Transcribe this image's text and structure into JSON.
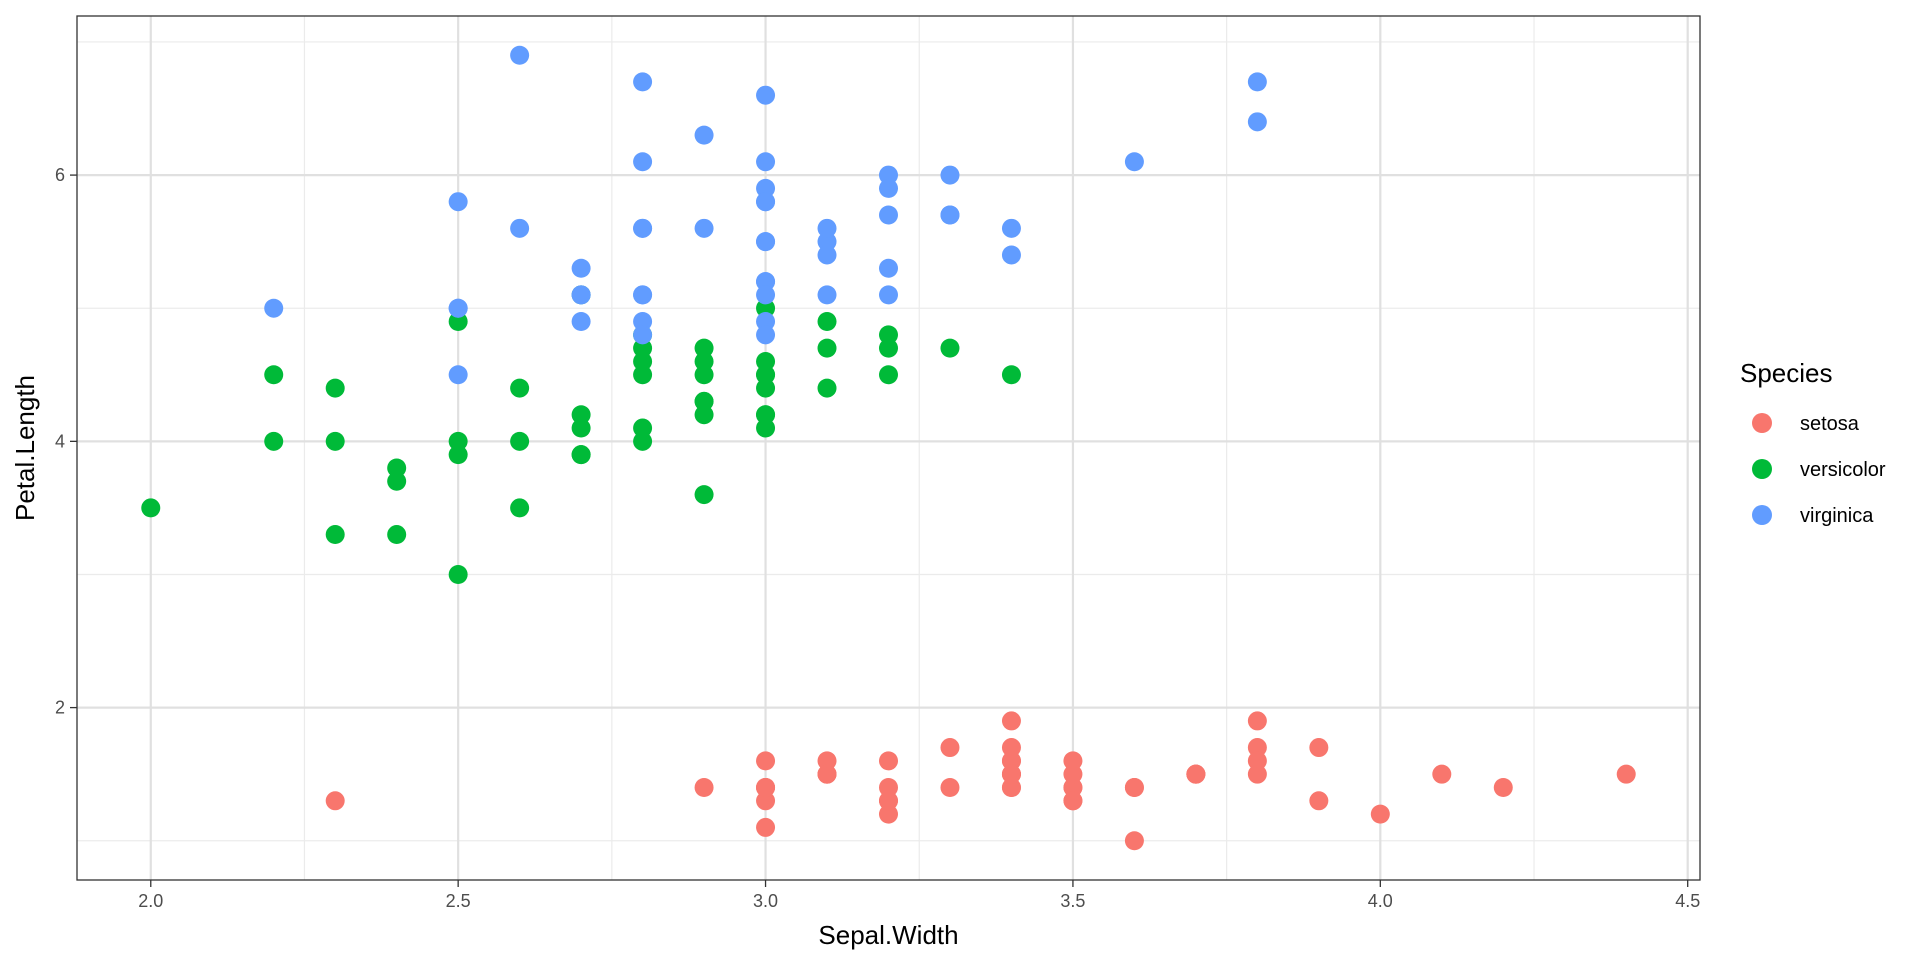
{
  "chart_data": {
    "type": "scatter",
    "xlabel": "Sepal.Width",
    "ylabel": "Petal.Length",
    "xlim": [
      1.88,
      4.52
    ],
    "ylim": [
      0.705,
      7.195
    ],
    "x_ticks": [
      2.0,
      2.5,
      3.0,
      3.5,
      4.0,
      4.5
    ],
    "x_tick_labels": [
      "2.0",
      "2.5",
      "3.0",
      "3.5",
      "4.0",
      "4.5"
    ],
    "x_minor_ticks": [
      2.25,
      2.75,
      3.25,
      3.75,
      4.25
    ],
    "y_ticks": [
      2,
      4,
      6
    ],
    "y_tick_labels": [
      "2",
      "4",
      "6"
    ],
    "y_minor_ticks": [
      1,
      3,
      5,
      7
    ],
    "grid": true,
    "legend": {
      "title": "Species",
      "position": "right"
    },
    "series": [
      {
        "name": "setosa",
        "color": "#F8766D",
        "points": [
          [
            3.5,
            1.4
          ],
          [
            3.0,
            1.4
          ],
          [
            3.2,
            1.3
          ],
          [
            3.1,
            1.5
          ],
          [
            3.6,
            1.4
          ],
          [
            3.9,
            1.7
          ],
          [
            3.4,
            1.4
          ],
          [
            3.4,
            1.5
          ],
          [
            2.9,
            1.4
          ],
          [
            3.1,
            1.5
          ],
          [
            3.7,
            1.5
          ],
          [
            3.4,
            1.6
          ],
          [
            3.0,
            1.4
          ],
          [
            3.0,
            1.1
          ],
          [
            4.0,
            1.2
          ],
          [
            4.4,
            1.5
          ],
          [
            3.9,
            1.3
          ],
          [
            3.5,
            1.4
          ],
          [
            3.8,
            1.7
          ],
          [
            3.8,
            1.5
          ],
          [
            3.4,
            1.7
          ],
          [
            3.7,
            1.5
          ],
          [
            3.6,
            1.0
          ],
          [
            3.3,
            1.7
          ],
          [
            3.4,
            1.9
          ],
          [
            3.0,
            1.6
          ],
          [
            3.4,
            1.6
          ],
          [
            3.5,
            1.5
          ],
          [
            3.4,
            1.4
          ],
          [
            3.2,
            1.6
          ],
          [
            3.1,
            1.6
          ],
          [
            3.4,
            1.5
          ],
          [
            4.1,
            1.5
          ],
          [
            4.2,
            1.4
          ],
          [
            3.1,
            1.5
          ],
          [
            3.2,
            1.2
          ],
          [
            3.5,
            1.3
          ],
          [
            3.6,
            1.4
          ],
          [
            3.0,
            1.3
          ],
          [
            3.4,
            1.5
          ],
          [
            3.5,
            1.3
          ],
          [
            2.3,
            1.3
          ],
          [
            3.2,
            1.3
          ],
          [
            3.5,
            1.6
          ],
          [
            3.8,
            1.9
          ],
          [
            3.0,
            1.4
          ],
          [
            3.8,
            1.6
          ],
          [
            3.2,
            1.4
          ],
          [
            3.7,
            1.5
          ],
          [
            3.3,
            1.4
          ]
        ]
      },
      {
        "name": "versicolor",
        "color": "#00BA38",
        "points": [
          [
            3.2,
            4.7
          ],
          [
            3.2,
            4.5
          ],
          [
            3.1,
            4.9
          ],
          [
            2.3,
            4.0
          ],
          [
            2.8,
            4.6
          ],
          [
            2.8,
            4.5
          ],
          [
            3.3,
            4.7
          ],
          [
            2.4,
            3.3
          ],
          [
            2.9,
            4.6
          ],
          [
            2.7,
            3.9
          ],
          [
            2.0,
            3.5
          ],
          [
            3.0,
            4.2
          ],
          [
            2.2,
            4.0
          ],
          [
            2.9,
            4.7
          ],
          [
            2.9,
            3.6
          ],
          [
            3.1,
            4.4
          ],
          [
            3.0,
            4.5
          ],
          [
            2.7,
            4.1
          ],
          [
            2.2,
            4.5
          ],
          [
            2.5,
            3.9
          ],
          [
            3.2,
            4.8
          ],
          [
            2.8,
            4.0
          ],
          [
            2.5,
            4.9
          ],
          [
            2.8,
            4.7
          ],
          [
            2.9,
            4.3
          ],
          [
            3.0,
            4.4
          ],
          [
            2.8,
            4.8
          ],
          [
            3.0,
            5.0
          ],
          [
            2.9,
            4.5
          ],
          [
            2.6,
            3.5
          ],
          [
            2.4,
            3.8
          ],
          [
            2.4,
            3.7
          ],
          [
            2.7,
            3.9
          ],
          [
            2.7,
            5.1
          ],
          [
            3.0,
            4.5
          ],
          [
            3.4,
            4.5
          ],
          [
            3.1,
            4.7
          ],
          [
            2.3,
            4.4
          ],
          [
            3.0,
            4.1
          ],
          [
            2.5,
            4.0
          ],
          [
            2.6,
            4.4
          ],
          [
            3.0,
            4.6
          ],
          [
            2.6,
            4.0
          ],
          [
            2.3,
            3.3
          ],
          [
            2.7,
            4.2
          ],
          [
            3.0,
            4.2
          ],
          [
            2.9,
            4.2
          ],
          [
            2.9,
            4.3
          ],
          [
            2.5,
            3.0
          ],
          [
            2.8,
            4.1
          ]
        ]
      },
      {
        "name": "virginica",
        "color": "#619CFF",
        "points": [
          [
            3.3,
            6.0
          ],
          [
            2.7,
            5.1
          ],
          [
            3.0,
            5.9
          ],
          [
            2.9,
            5.6
          ],
          [
            3.0,
            5.8
          ],
          [
            3.0,
            6.6
          ],
          [
            2.5,
            4.5
          ],
          [
            2.9,
            6.3
          ],
          [
            2.5,
            5.8
          ],
          [
            3.6,
            6.1
          ],
          [
            3.2,
            5.1
          ],
          [
            2.7,
            5.3
          ],
          [
            3.0,
            5.5
          ],
          [
            2.5,
            5.0
          ],
          [
            2.8,
            5.1
          ],
          [
            3.2,
            5.3
          ],
          [
            3.0,
            5.5
          ],
          [
            3.8,
            6.7
          ],
          [
            2.6,
            6.9
          ],
          [
            2.2,
            5.0
          ],
          [
            3.2,
            5.7
          ],
          [
            2.8,
            4.9
          ],
          [
            2.8,
            6.7
          ],
          [
            2.7,
            4.9
          ],
          [
            3.3,
            5.7
          ],
          [
            3.2,
            6.0
          ],
          [
            2.8,
            4.8
          ],
          [
            3.0,
            4.9
          ],
          [
            2.8,
            5.6
          ],
          [
            3.0,
            5.8
          ],
          [
            2.8,
            6.1
          ],
          [
            3.8,
            6.4
          ],
          [
            2.8,
            5.6
          ],
          [
            2.8,
            5.1
          ],
          [
            2.6,
            5.6
          ],
          [
            3.0,
            6.1
          ],
          [
            3.4,
            5.6
          ],
          [
            3.1,
            5.5
          ],
          [
            3.0,
            4.8
          ],
          [
            3.1,
            5.4
          ],
          [
            3.1,
            5.6
          ],
          [
            3.1,
            5.1
          ],
          [
            2.7,
            5.1
          ],
          [
            3.2,
            5.9
          ],
          [
            3.3,
            5.7
          ],
          [
            3.0,
            5.2
          ],
          [
            2.5,
            5.0
          ],
          [
            3.0,
            5.2
          ],
          [
            3.4,
            5.4
          ],
          [
            3.0,
            5.1
          ]
        ]
      }
    ]
  }
}
